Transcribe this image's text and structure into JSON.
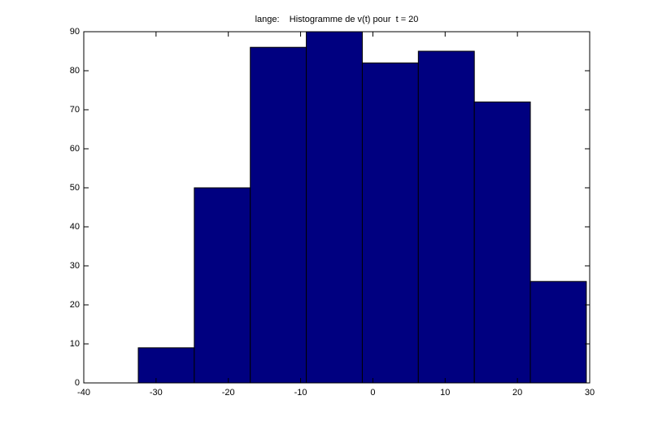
{
  "chart_data": {
    "type": "histogram",
    "title": "lange:    Histogramme de v(t) pour  t = 20",
    "bins": [
      -32.46,
      -24.71,
      -16.96,
      -9.21,
      -1.46,
      6.29,
      14.04,
      21.79,
      29.54
    ],
    "counts": [
      9,
      50,
      86,
      90,
      82,
      85,
      72,
      26
    ],
    "color": "#000080",
    "xlim": [
      -40,
      30
    ],
    "xticks": [
      -40,
      -30,
      -20,
      -10,
      0,
      10,
      20,
      30
    ],
    "ylim": [
      0,
      90
    ],
    "yticks": [
      0,
      10,
      20,
      30,
      40,
      50,
      60,
      70,
      80,
      90
    ],
    "grid": false
  }
}
